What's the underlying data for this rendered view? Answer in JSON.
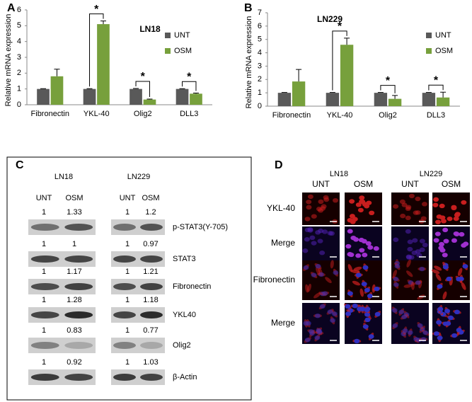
{
  "panels": [
    "A",
    "B",
    "C",
    "D"
  ],
  "chart_data": [
    {
      "type": "bar",
      "title": "LN18",
      "y_label": "Relative  mRNA expression",
      "categories": [
        "Fibronectin",
        "YKL-40",
        "Olig2",
        "DLL3"
      ],
      "series": [
        {
          "name": "UNT",
          "color": "#595959",
          "values": [
            1,
            1,
            1,
            1
          ],
          "errors": [
            0.02,
            0.02,
            0.03,
            0.02
          ]
        },
        {
          "name": "OSM",
          "color": "#77a03c",
          "values": [
            1.8,
            5.1,
            0.33,
            0.7
          ],
          "errors": [
            0.45,
            0.2,
            0.03,
            0.04
          ]
        }
      ],
      "significance": [
        null,
        "*",
        "*",
        "*"
      ],
      "ylim": [
        0,
        6
      ],
      "yticks": [
        0,
        1,
        2,
        3,
        4,
        5,
        6
      ]
    },
    {
      "type": "bar",
      "title": "LN229",
      "y_label": "Relative  mRNA expression",
      "categories": [
        "Fibronectin",
        "YKL-40",
        "Olig2",
        "DLL3"
      ],
      "series": [
        {
          "name": "UNT",
          "color": "#595959",
          "values": [
            1,
            1,
            1,
            1
          ],
          "errors": [
            0.03,
            0.03,
            0.03,
            0.03
          ]
        },
        {
          "name": "OSM",
          "color": "#77a03c",
          "values": [
            1.85,
            4.6,
            0.55,
            0.65
          ],
          "errors": [
            0.9,
            0.5,
            0.25,
            0.4
          ]
        }
      ],
      "significance": [
        null,
        "*",
        "*",
        "*"
      ],
      "ylim": [
        0,
        7
      ],
      "yticks": [
        0,
        1,
        2,
        3,
        4,
        5,
        6,
        7
      ]
    }
  ],
  "western_blot": {
    "cell_lines": [
      "LN18",
      "LN229"
    ],
    "conditions": [
      "UNT",
      "OSM"
    ],
    "rows": [
      {
        "protein": "p-STAT3(Y-705)",
        "ratios": [
          [
            1,
            1.33
          ],
          [
            1,
            1.2
          ]
        ]
      },
      {
        "protein": "STAT3",
        "ratios": [
          [
            1,
            1
          ],
          [
            1,
            0.97
          ]
        ]
      },
      {
        "protein": "Fibronectin",
        "ratios": [
          [
            1,
            1.17
          ],
          [
            1,
            1.21
          ]
        ]
      },
      {
        "protein": "YKL40",
        "ratios": [
          [
            1,
            1.28
          ],
          [
            1,
            1.18
          ]
        ]
      },
      {
        "protein": "Olig2",
        "ratios": [
          [
            1,
            0.83
          ],
          [
            1,
            0.77
          ]
        ]
      },
      {
        "protein": "β-Actin",
        "ratios": [
          [
            1,
            0.92
          ],
          [
            1,
            1.03
          ]
        ]
      }
    ]
  },
  "immunofluorescence": {
    "cell_lines": [
      "LN18",
      "LN229"
    ],
    "conditions": [
      "UNT",
      "OSM"
    ],
    "rows": [
      "YKL-40",
      "Merge",
      "Fibronectin",
      "Merge"
    ]
  }
}
